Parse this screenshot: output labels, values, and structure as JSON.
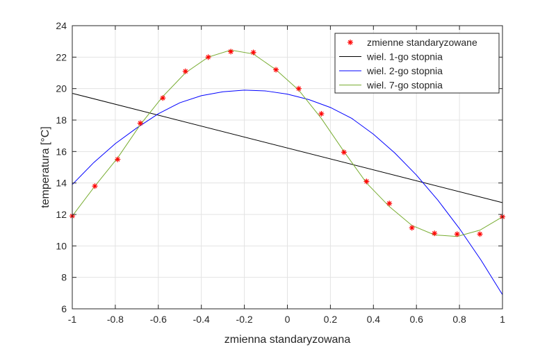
{
  "chart_data": {
    "type": "line",
    "title": "",
    "xlabel": "zmienna standaryzowana",
    "ylabel": "temperatura [°C]",
    "xlim": [
      -1,
      1
    ],
    "ylim": [
      6,
      24
    ],
    "xticks": [
      -1,
      -0.8,
      -0.6,
      -0.4,
      -0.2,
      0,
      0.2,
      0.4,
      0.6,
      0.8,
      1
    ],
    "yticks": [
      6,
      8,
      10,
      12,
      14,
      16,
      18,
      20,
      22,
      24
    ],
    "xtick_labels": [
      "-1",
      "-0.8",
      "-0.6",
      "-0.4",
      "-0.2",
      "0",
      "0.2",
      "0.4",
      "0.6",
      "0.8",
      "1"
    ],
    "ytick_labels": [
      "6",
      "8",
      "10",
      "12",
      "14",
      "16",
      "18",
      "20",
      "22",
      "24"
    ],
    "grid": true,
    "legend_position": "top-right",
    "series": [
      {
        "name": "zmienne standaryzowane",
        "kind": "marker",
        "marker": "*",
        "color": "#ff0000",
        "x": [
          -1,
          -0.895,
          -0.789,
          -0.684,
          -0.579,
          -0.474,
          -0.368,
          -0.263,
          -0.158,
          -0.053,
          0.053,
          0.158,
          0.263,
          0.368,
          0.474,
          0.579,
          0.684,
          0.789,
          0.895,
          1
        ],
        "y": [
          11.9,
          13.8,
          15.5,
          17.8,
          19.4,
          21.1,
          22.0,
          22.35,
          22.3,
          21.2,
          20.0,
          18.4,
          15.95,
          14.1,
          12.7,
          11.15,
          10.8,
          10.75,
          10.75,
          11.85
        ]
      },
      {
        "name": "wiel. 1-go stopnia",
        "kind": "line",
        "color": "#000000",
        "x": [
          -1,
          1
        ],
        "y": [
          19.7,
          12.75
        ]
      },
      {
        "name": "wiel. 2-go stopnia",
        "kind": "line",
        "color": "#0000ff",
        "x": [
          -1,
          -0.9,
          -0.8,
          -0.7,
          -0.6,
          -0.5,
          -0.4,
          -0.3,
          -0.2,
          -0.1,
          0,
          0.1,
          0.2,
          0.3,
          0.4,
          0.5,
          0.6,
          0.7,
          0.8,
          0.9,
          1
        ],
        "y": [
          13.9,
          15.3,
          16.5,
          17.5,
          18.4,
          19.1,
          19.55,
          19.8,
          19.9,
          19.85,
          19.65,
          19.3,
          18.8,
          18.1,
          17.1,
          15.9,
          14.5,
          12.9,
          11.1,
          9.1,
          6.9
        ]
      },
      {
        "name": "wiel. 7-go stopnia",
        "kind": "line",
        "color": "#77ac30",
        "x": [
          -1,
          -0.895,
          -0.789,
          -0.684,
          -0.579,
          -0.474,
          -0.368,
          -0.263,
          -0.158,
          -0.053,
          0.053,
          0.158,
          0.263,
          0.368,
          0.474,
          0.579,
          0.684,
          0.789,
          0.895,
          1
        ],
        "y": [
          11.9,
          13.8,
          15.6,
          17.7,
          19.5,
          21.0,
          22.0,
          22.45,
          22.2,
          21.2,
          19.9,
          18.1,
          16.0,
          14.0,
          12.5,
          11.3,
          10.7,
          10.6,
          11.0,
          11.85
        ]
      }
    ]
  }
}
